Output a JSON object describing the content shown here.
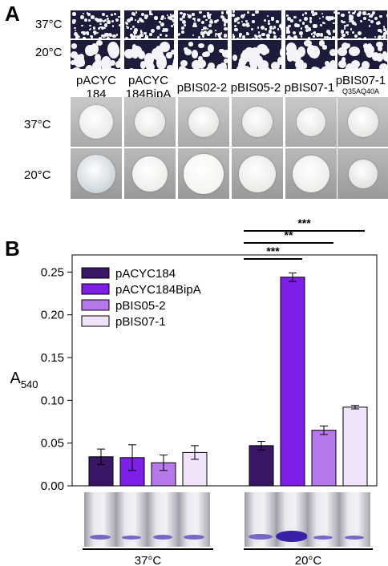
{
  "panel_a": {
    "label": "A",
    "row_temps": [
      "37°C",
      "20°C",
      "37°C",
      "20°C"
    ],
    "strains": [
      {
        "line1": "pACYC",
        "line2": "184",
        "sub": ""
      },
      {
        "line1": "pACYC",
        "line2": "184BipA",
        "sub": ""
      },
      {
        "line1": "pBIS02-2",
        "line2": "",
        "sub": ""
      },
      {
        "line1": "pBIS05-2",
        "line2": "",
        "sub": ""
      },
      {
        "line1": "pBIS07-1",
        "line2": "",
        "sub": ""
      },
      {
        "line1": "pBIS07-1",
        "line2": "",
        "sub": "Q35AQ40A"
      }
    ]
  },
  "panel_b": {
    "label": "B",
    "group_labels": [
      "37°C",
      "20°C"
    ],
    "significance": [
      "***",
      "**",
      "***"
    ]
  },
  "chart_data": {
    "type": "bar",
    "ylabel": "A",
    "ylabel_sub": "540",
    "ylim": [
      0,
      0.27
    ],
    "yticks": [
      "0.00",
      "0.05",
      "0.10",
      "0.15",
      "0.20",
      "0.25"
    ],
    "grid": false,
    "legend_placement": "top-left",
    "categories": [
      "37°C",
      "20°C"
    ],
    "series": [
      {
        "name": "pACYC184",
        "color": "#3a1764",
        "values": [
          0.034,
          0.047
        ],
        "errors": [
          0.009,
          0.005
        ]
      },
      {
        "name": "pACYC184BipA",
        "color": "#7d1fe6",
        "values": [
          0.033,
          0.244
        ],
        "errors": [
          0.015,
          0.005
        ]
      },
      {
        "name": "pBIS05-2",
        "color": "#b678ea",
        "values": [
          0.027,
          0.065
        ],
        "errors": [
          0.009,
          0.005
        ]
      },
      {
        "name": "pBIS07-1",
        "color": "#f0e3fa",
        "values": [
          0.039,
          0.092
        ],
        "errors": [
          0.008,
          0.002
        ]
      }
    ]
  }
}
